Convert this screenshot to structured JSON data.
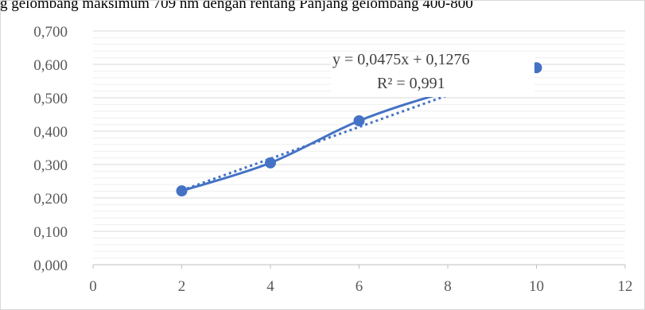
{
  "chart_data": {
    "type": "scatter",
    "title": "g gelombang maksimum 709 nm dengan rentang Panjang gelombang 400-800",
    "xlabel": "",
    "ylabel": "",
    "xlim": [
      0,
      12
    ],
    "ylim": [
      0,
      0.7
    ],
    "x_ticks": [
      0,
      2,
      4,
      6,
      8,
      10,
      12
    ],
    "y_ticks": [
      0,
      0.1,
      0.2,
      0.3,
      0.4,
      0.5,
      0.6,
      0.7
    ],
    "x_tick_labels": [
      "0",
      "2",
      "4",
      "6",
      "8",
      "10",
      "12"
    ],
    "y_tick_labels": [
      "0,000",
      "0,100",
      "0,200",
      "0,300",
      "0,400",
      "0,500",
      "0,600",
      "0,700"
    ],
    "grid": true,
    "legend": "none",
    "series": [
      {
        "x": [
          2,
          4,
          6,
          8,
          10
        ],
        "y": [
          0.221,
          0.305,
          0.431,
          0.519,
          0.59
        ],
        "smooth": true,
        "color": "#4472C4"
      }
    ],
    "trendline": {
      "type": "linear",
      "slope": 0.0475,
      "intercept": 0.1276,
      "style": "dotted",
      "color": "#4472C4",
      "equation": "y = 0,0475x + 0,1276",
      "r_squared": "R² = 0,991"
    }
  }
}
